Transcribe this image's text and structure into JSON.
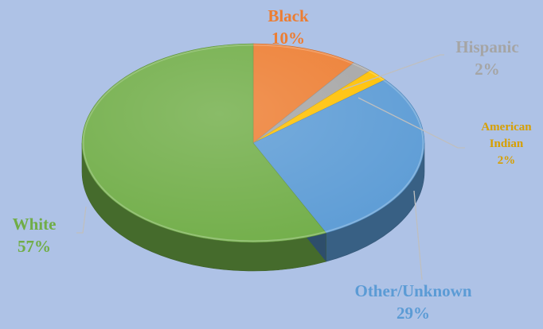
{
  "chart_data": {
    "type": "pie",
    "title": "",
    "slices": [
      {
        "label": "Black",
        "value": 10,
        "value_label": "10%",
        "color": "#ed7d31",
        "label_color": "#ed7d31"
      },
      {
        "label": "Hispanic",
        "value": 2,
        "value_label": "2%",
        "color": "#a5a5a5",
        "label_color": "#a5a5a5"
      },
      {
        "label": "American Indian",
        "label_lines": [
          "American",
          "Indian"
        ],
        "value": 2,
        "value_label": "2%",
        "color": "#ffc000",
        "label_color": "#d79f00"
      },
      {
        "label": "Other/Unknown",
        "value": 29,
        "value_label": "29%",
        "color": "#5b9bd5",
        "label_color": "#5b9bd5"
      },
      {
        "label": "White",
        "value": 57,
        "value_label": "57%",
        "color": "#70ad47",
        "label_color": "#70ad47"
      }
    ],
    "start_angle_deg": 90,
    "direction": "clockwise",
    "style": "3d",
    "legend": "none",
    "colors": {
      "background": "#aec2e6",
      "leader_line": "#bfbfbf"
    }
  }
}
